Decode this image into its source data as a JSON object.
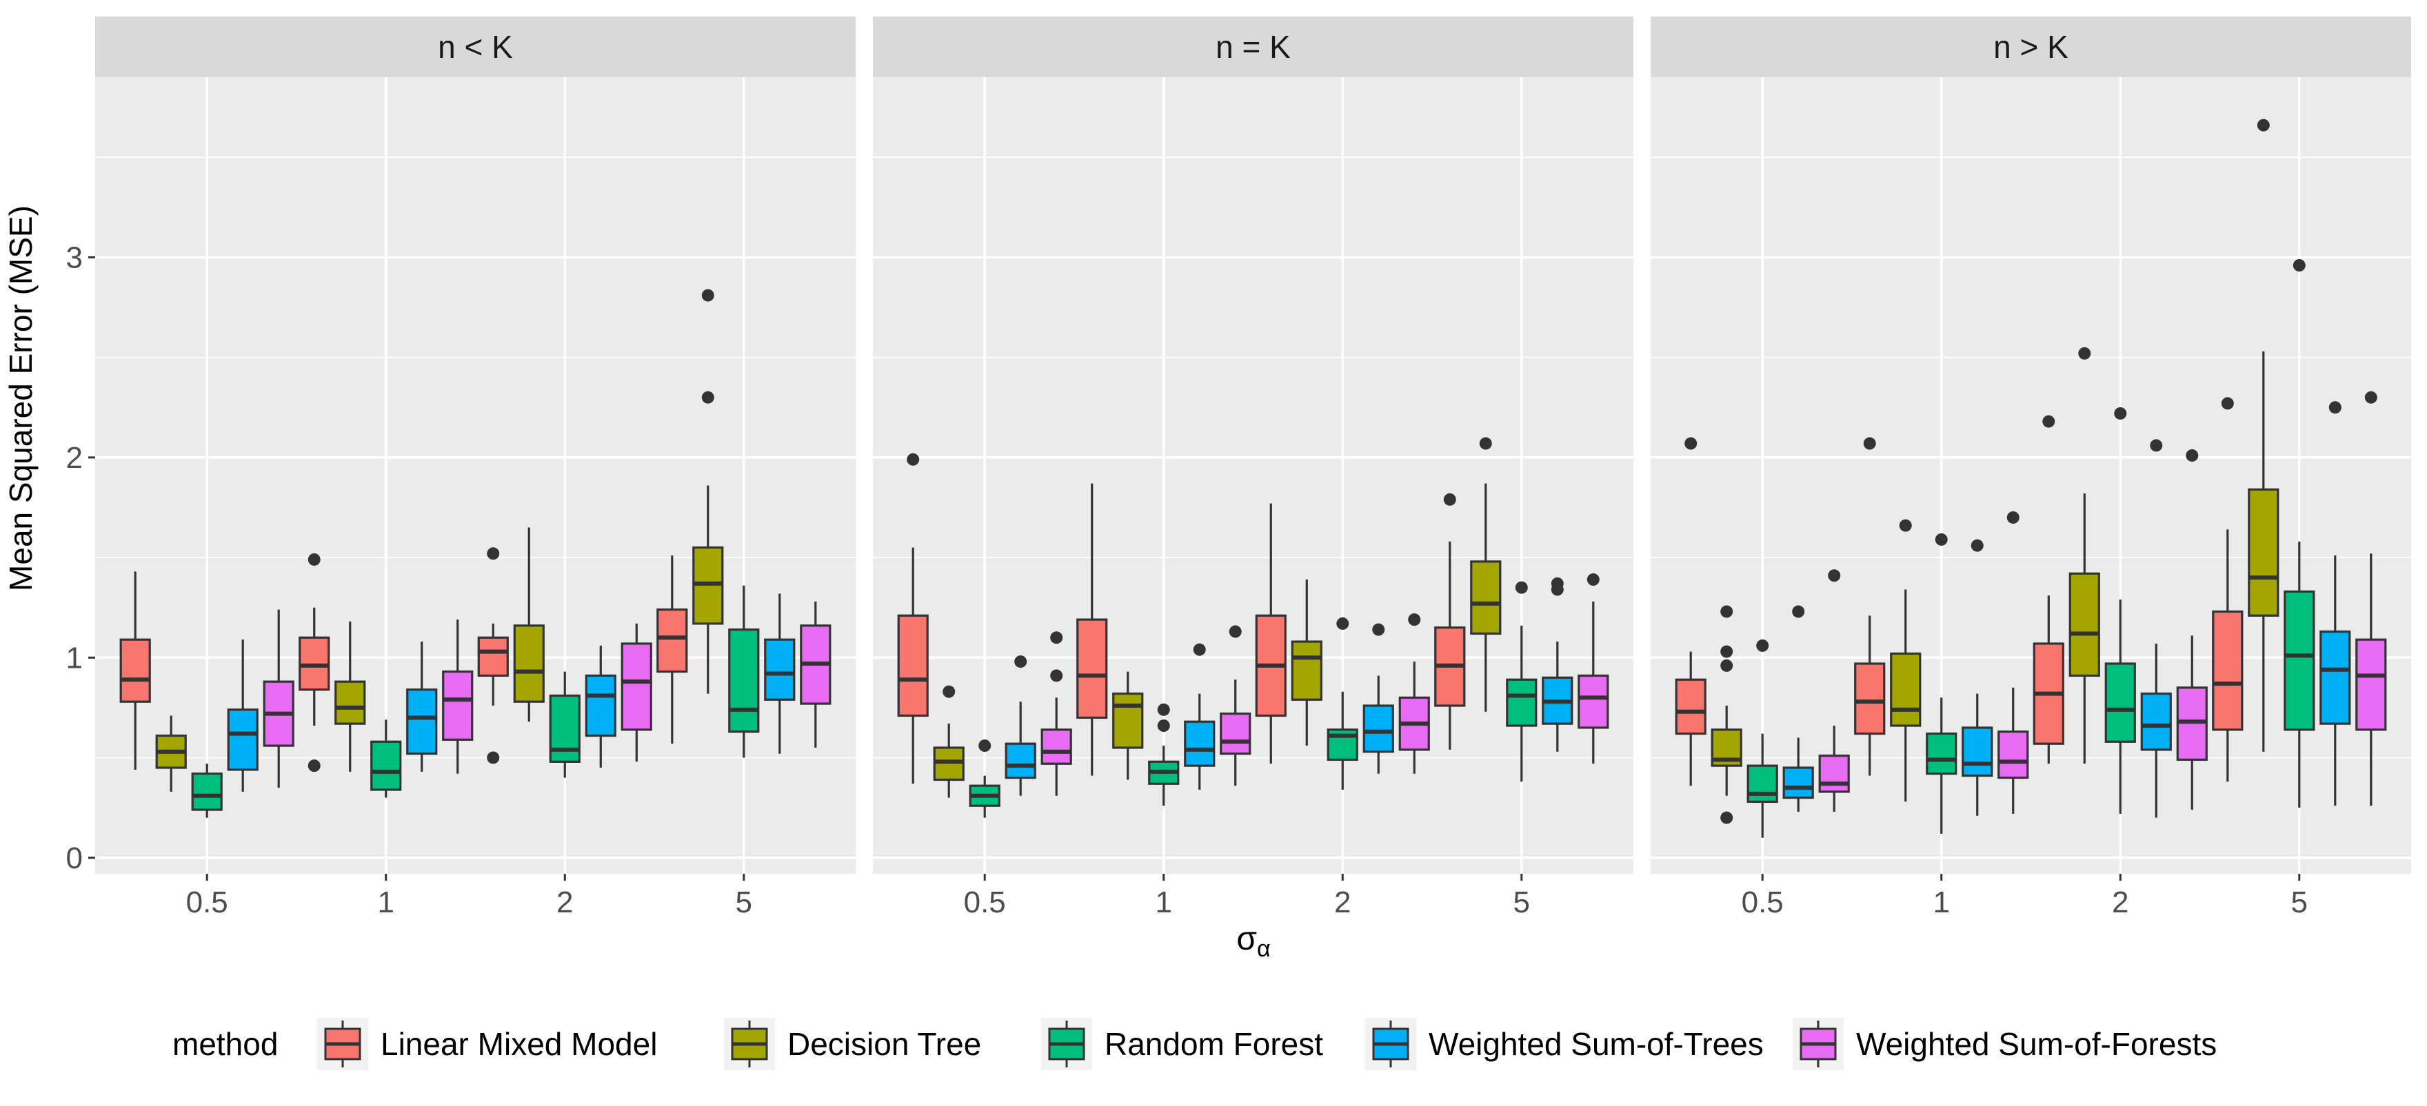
{
  "chart_data": {
    "type": "boxplot",
    "ylabel": "Mean Squared Error (MSE)",
    "xlabel": "σ",
    "xlabel_subscript": "α",
    "categories": [
      "0.5",
      "1",
      "2",
      "5"
    ],
    "ylim": [
      -0.08,
      3.9
    ],
    "yticks": [
      0,
      1,
      2,
      3
    ],
    "grid": true,
    "legend": {
      "title": "method",
      "position": "bottom",
      "entries": [
        {
          "name": "Linear Mixed Model",
          "color": "#F8766D"
        },
        {
          "name": "Decision Tree",
          "color": "#A3A500"
        },
        {
          "name": "Random Forest",
          "color": "#00BF7D"
        },
        {
          "name": "Weighted Sum-of-Trees",
          "color": "#00B0F6"
        },
        {
          "name": "Weighted Sum-of-Forests",
          "color": "#E76BF3"
        }
      ]
    },
    "panels": [
      {
        "title": "n < K",
        "groups": [
          {
            "category": "0.5",
            "boxes": [
              {
                "lo": 0.44,
                "q1": 0.78,
                "med": 0.89,
                "q3": 1.09,
                "hi": 1.43,
                "out": []
              },
              {
                "lo": 0.33,
                "q1": 0.45,
                "med": 0.53,
                "q3": 0.61,
                "hi": 0.71,
                "out": []
              },
              {
                "lo": 0.2,
                "q1": 0.24,
                "med": 0.31,
                "q3": 0.42,
                "hi": 0.47,
                "out": []
              },
              {
                "lo": 0.33,
                "q1": 0.44,
                "med": 0.62,
                "q3": 0.74,
                "hi": 1.09,
                "out": []
              },
              {
                "lo": 0.35,
                "q1": 0.56,
                "med": 0.72,
                "q3": 0.88,
                "hi": 1.24,
                "out": []
              }
            ]
          },
          {
            "category": "1",
            "boxes": [
              {
                "lo": 0.66,
                "q1": 0.84,
                "med": 0.96,
                "q3": 1.1,
                "hi": 1.25,
                "out": [
                  1.49,
                  0.46
                ]
              },
              {
                "lo": 0.43,
                "q1": 0.67,
                "med": 0.75,
                "q3": 0.88,
                "hi": 1.18,
                "out": []
              },
              {
                "lo": 0.3,
                "q1": 0.34,
                "med": 0.43,
                "q3": 0.58,
                "hi": 0.69,
                "out": []
              },
              {
                "lo": 0.43,
                "q1": 0.52,
                "med": 0.7,
                "q3": 0.84,
                "hi": 1.08,
                "out": []
              },
              {
                "lo": 0.42,
                "q1": 0.59,
                "med": 0.79,
                "q3": 0.93,
                "hi": 1.19,
                "out": []
              }
            ]
          },
          {
            "category": "2",
            "boxes": [
              {
                "lo": 0.76,
                "q1": 0.91,
                "med": 1.03,
                "q3": 1.1,
                "hi": 1.17,
                "out": [
                  1.52,
                  0.5
                ]
              },
              {
                "lo": 0.68,
                "q1": 0.78,
                "med": 0.93,
                "q3": 1.16,
                "hi": 1.65,
                "out": []
              },
              {
                "lo": 0.4,
                "q1": 0.48,
                "med": 0.54,
                "q3": 0.81,
                "hi": 0.93,
                "out": []
              },
              {
                "lo": 0.45,
                "q1": 0.61,
                "med": 0.81,
                "q3": 0.91,
                "hi": 1.06,
                "out": []
              },
              {
                "lo": 0.48,
                "q1": 0.64,
                "med": 0.88,
                "q3": 1.07,
                "hi": 1.17,
                "out": []
              }
            ]
          },
          {
            "category": "5",
            "boxes": [
              {
                "lo": 0.57,
                "q1": 0.93,
                "med": 1.1,
                "q3": 1.24,
                "hi": 1.51,
                "out": []
              },
              {
                "lo": 0.82,
                "q1": 1.17,
                "med": 1.37,
                "q3": 1.55,
                "hi": 1.86,
                "out": [
                  2.81,
                  2.3
                ]
              },
              {
                "lo": 0.5,
                "q1": 0.63,
                "med": 0.74,
                "q3": 1.14,
                "hi": 1.36,
                "out": []
              },
              {
                "lo": 0.52,
                "q1": 0.79,
                "med": 0.92,
                "q3": 1.09,
                "hi": 1.32,
                "out": []
              },
              {
                "lo": 0.55,
                "q1": 0.77,
                "med": 0.97,
                "q3": 1.16,
                "hi": 1.28,
                "out": []
              }
            ]
          }
        ]
      },
      {
        "title": "n = K",
        "groups": [
          {
            "category": "0.5",
            "boxes": [
              {
                "lo": 0.37,
                "q1": 0.71,
                "med": 0.89,
                "q3": 1.21,
                "hi": 1.55,
                "out": [
                  1.99
                ]
              },
              {
                "lo": 0.3,
                "q1": 0.39,
                "med": 0.48,
                "q3": 0.55,
                "hi": 0.67,
                "out": [
                  0.83
                ]
              },
              {
                "lo": 0.2,
                "q1": 0.26,
                "med": 0.31,
                "q3": 0.36,
                "hi": 0.41,
                "out": [
                  0.56
                ]
              },
              {
                "lo": 0.31,
                "q1": 0.4,
                "med": 0.46,
                "q3": 0.57,
                "hi": 0.78,
                "out": [
                  0.98
                ]
              },
              {
                "lo": 0.31,
                "q1": 0.47,
                "med": 0.53,
                "q3": 0.64,
                "hi": 0.8,
                "out": [
                  1.1,
                  0.91
                ]
              }
            ]
          },
          {
            "category": "1",
            "boxes": [
              {
                "lo": 0.41,
                "q1": 0.7,
                "med": 0.91,
                "q3": 1.19,
                "hi": 1.87,
                "out": []
              },
              {
                "lo": 0.39,
                "q1": 0.55,
                "med": 0.76,
                "q3": 0.82,
                "hi": 0.93,
                "out": []
              },
              {
                "lo": 0.26,
                "q1": 0.37,
                "med": 0.43,
                "q3": 0.48,
                "hi": 0.56,
                "out": [
                  0.74,
                  0.66
                ]
              },
              {
                "lo": 0.34,
                "q1": 0.46,
                "med": 0.54,
                "q3": 0.68,
                "hi": 0.82,
                "out": [
                  1.04
                ]
              },
              {
                "lo": 0.36,
                "q1": 0.52,
                "med": 0.58,
                "q3": 0.72,
                "hi": 0.89,
                "out": [
                  1.13
                ]
              }
            ]
          },
          {
            "category": "2",
            "boxes": [
              {
                "lo": 0.47,
                "q1": 0.71,
                "med": 0.96,
                "q3": 1.21,
                "hi": 1.77,
                "out": []
              },
              {
                "lo": 0.56,
                "q1": 0.79,
                "med": 1.0,
                "q3": 1.08,
                "hi": 1.39,
                "out": []
              },
              {
                "lo": 0.34,
                "q1": 0.49,
                "med": 0.61,
                "q3": 0.64,
                "hi": 0.83,
                "out": [
                  1.17
                ]
              },
              {
                "lo": 0.42,
                "q1": 0.53,
                "med": 0.63,
                "q3": 0.76,
                "hi": 0.91,
                "out": [
                  1.14
                ]
              },
              {
                "lo": 0.42,
                "q1": 0.54,
                "med": 0.67,
                "q3": 0.8,
                "hi": 0.98,
                "out": [
                  1.19
                ]
              }
            ]
          },
          {
            "category": "5",
            "boxes": [
              {
                "lo": 0.54,
                "q1": 0.76,
                "med": 0.96,
                "q3": 1.15,
                "hi": 1.58,
                "out": [
                  1.79
                ]
              },
              {
                "lo": 0.73,
                "q1": 1.12,
                "med": 1.27,
                "q3": 1.48,
                "hi": 1.87,
                "out": [
                  2.07
                ]
              },
              {
                "lo": 0.38,
                "q1": 0.66,
                "med": 0.81,
                "q3": 0.89,
                "hi": 1.16,
                "out": [
                  1.35
                ]
              },
              {
                "lo": 0.53,
                "q1": 0.67,
                "med": 0.78,
                "q3": 0.9,
                "hi": 1.08,
                "out": [
                  1.37,
                  1.34
                ]
              },
              {
                "lo": 0.47,
                "q1": 0.65,
                "med": 0.8,
                "q3": 0.91,
                "hi": 1.28,
                "out": [
                  1.39
                ]
              }
            ]
          }
        ]
      },
      {
        "title": "n > K",
        "groups": [
          {
            "category": "0.5",
            "boxes": [
              {
                "lo": 0.36,
                "q1": 0.62,
                "med": 0.73,
                "q3": 0.89,
                "hi": 1.03,
                "out": [
                  2.07
                ]
              },
              {
                "lo": 0.31,
                "q1": 0.46,
                "med": 0.49,
                "q3": 0.64,
                "hi": 0.76,
                "out": [
                  1.23,
                  1.03,
                  0.96,
                  0.2
                ]
              },
              {
                "lo": 0.1,
                "q1": 0.28,
                "med": 0.32,
                "q3": 0.46,
                "hi": 0.62,
                "out": [
                  1.06
                ]
              },
              {
                "lo": 0.23,
                "q1": 0.3,
                "med": 0.35,
                "q3": 0.45,
                "hi": 0.6,
                "out": [
                  1.23
                ]
              },
              {
                "lo": 0.23,
                "q1": 0.33,
                "med": 0.37,
                "q3": 0.51,
                "hi": 0.66,
                "out": [
                  1.41
                ]
              }
            ]
          },
          {
            "category": "1",
            "boxes": [
              {
                "lo": 0.41,
                "q1": 0.62,
                "med": 0.78,
                "q3": 0.97,
                "hi": 1.21,
                "out": [
                  2.07
                ]
              },
              {
                "lo": 0.28,
                "q1": 0.66,
                "med": 0.74,
                "q3": 1.02,
                "hi": 1.34,
                "out": [
                  1.66
                ]
              },
              {
                "lo": 0.12,
                "q1": 0.42,
                "med": 0.49,
                "q3": 0.62,
                "hi": 0.8,
                "out": [
                  1.59
                ]
              },
              {
                "lo": 0.21,
                "q1": 0.41,
                "med": 0.47,
                "q3": 0.65,
                "hi": 0.82,
                "out": [
                  1.56
                ]
              },
              {
                "lo": 0.22,
                "q1": 0.4,
                "med": 0.48,
                "q3": 0.63,
                "hi": 0.85,
                "out": [
                  1.7
                ]
              }
            ]
          },
          {
            "category": "2",
            "boxes": [
              {
                "lo": 0.47,
                "q1": 0.57,
                "med": 0.82,
                "q3": 1.07,
                "hi": 1.31,
                "out": [
                  2.18
                ]
              },
              {
                "lo": 0.47,
                "q1": 0.91,
                "med": 1.12,
                "q3": 1.42,
                "hi": 1.82,
                "out": [
                  2.52
                ]
              },
              {
                "lo": 0.22,
                "q1": 0.58,
                "med": 0.74,
                "q3": 0.97,
                "hi": 1.29,
                "out": [
                  2.22
                ]
              },
              {
                "lo": 0.2,
                "q1": 0.54,
                "med": 0.66,
                "q3": 0.82,
                "hi": 1.07,
                "out": [
                  2.06
                ]
              },
              {
                "lo": 0.24,
                "q1": 0.49,
                "med": 0.68,
                "q3": 0.85,
                "hi": 1.11,
                "out": [
                  2.01
                ]
              }
            ]
          },
          {
            "category": "5",
            "boxes": [
              {
                "lo": 0.38,
                "q1": 0.64,
                "med": 0.87,
                "q3": 1.23,
                "hi": 1.64,
                "out": [
                  2.27
                ]
              },
              {
                "lo": 0.53,
                "q1": 1.21,
                "med": 1.4,
                "q3": 1.84,
                "hi": 2.53,
                "out": [
                  3.66
                ]
              },
              {
                "lo": 0.25,
                "q1": 0.64,
                "med": 1.01,
                "q3": 1.33,
                "hi": 1.58,
                "out": [
                  2.96
                ]
              },
              {
                "lo": 0.26,
                "q1": 0.67,
                "med": 0.94,
                "q3": 1.13,
                "hi": 1.51,
                "out": [
                  2.25
                ]
              },
              {
                "lo": 0.26,
                "q1": 0.64,
                "med": 0.91,
                "q3": 1.09,
                "hi": 1.52,
                "out": [
                  2.3
                ]
              }
            ]
          }
        ]
      }
    ]
  }
}
